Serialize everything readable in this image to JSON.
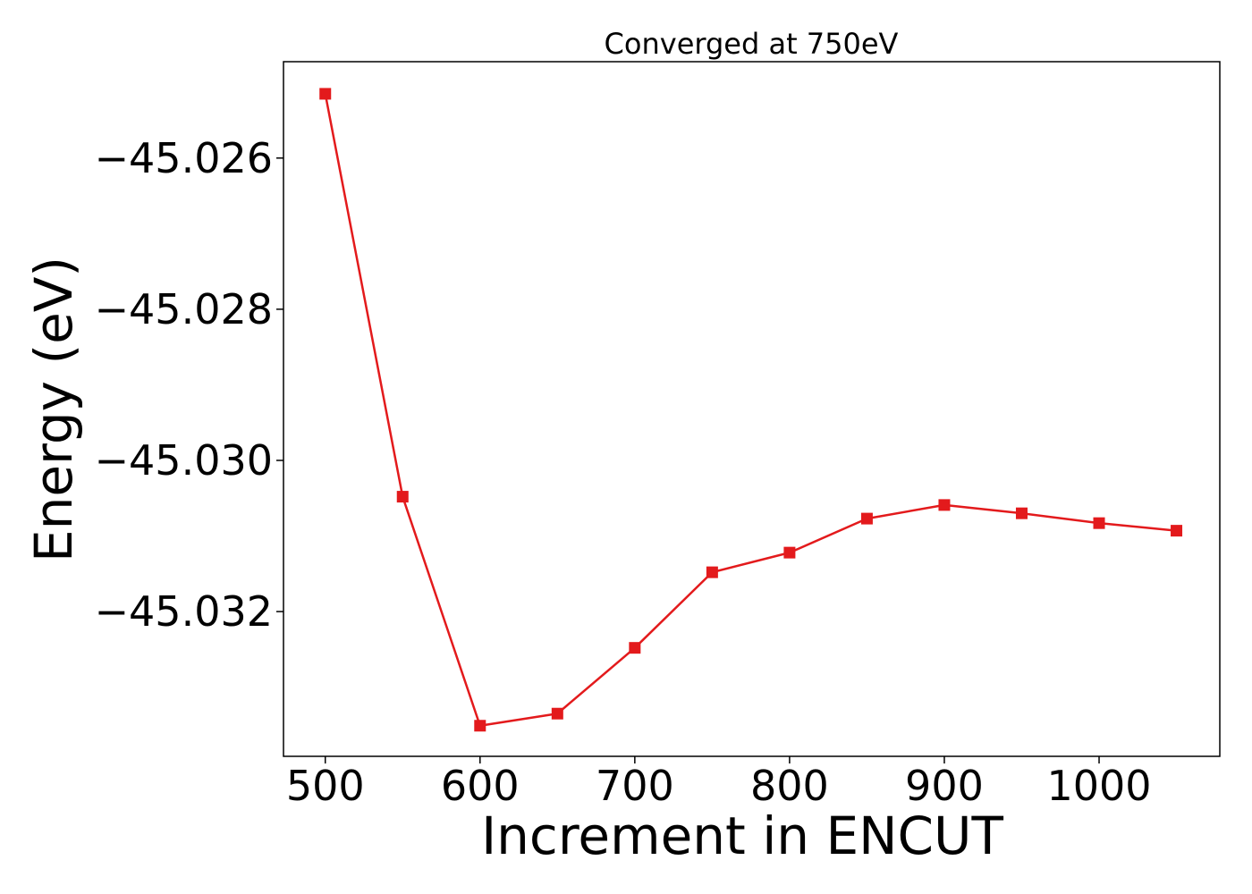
{
  "chart_data": {
    "type": "line",
    "title": "Converged at 750eV",
    "xlabel": "Increment in ENCUT",
    "ylabel": "Energy (eV)",
    "x": [
      500,
      550,
      600,
      650,
      700,
      750,
      800,
      850,
      900,
      950,
      1000,
      1050
    ],
    "series": [
      {
        "values": [
          -45.02515,
          -45.03048,
          -45.03351,
          -45.03335,
          -45.03248,
          -45.03148,
          -45.03122,
          -45.03077,
          -45.03059,
          -45.0307,
          -45.03083,
          -45.03093
        ],
        "color": "#e31a1c",
        "marker": "square"
      }
    ],
    "xlim": [
      473,
      1078
    ],
    "ylim": [
      -45.033915,
      -45.024725
    ],
    "xticks": [
      500,
      600,
      700,
      800,
      900,
      1000
    ],
    "xtick_labels": [
      "500",
      "600",
      "700",
      "800",
      "900",
      "1000"
    ],
    "yticks": [
      -45.026,
      -45.028,
      -45.03,
      -45.032
    ],
    "ytick_labels": [
      "−45.026",
      "−45.028",
      "−45.030",
      "−45.032"
    ],
    "grid": false,
    "legend": "none"
  }
}
